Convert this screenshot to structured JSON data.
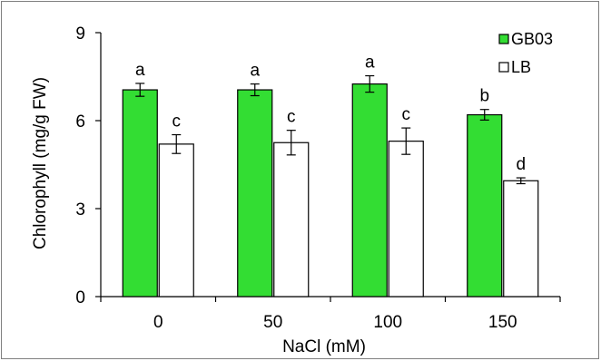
{
  "chart_data": {
    "type": "bar",
    "title": "",
    "xlabel": "NaCl (mM)",
    "ylabel": "Chlorophyll (mg/g FW)",
    "categories": [
      "0",
      "50",
      "100",
      "150"
    ],
    "ylim": [
      0,
      9
    ],
    "yticks": [
      "0",
      "3",
      "6",
      "9"
    ],
    "grid": false,
    "legend_position": "top-right",
    "series": [
      {
        "name": "GB03",
        "color": "#33dd33",
        "values": [
          7.05,
          7.05,
          7.25,
          6.2
        ],
        "errors": [
          0.22,
          0.2,
          0.28,
          0.18
        ],
        "labels": [
          "a",
          "a",
          "a",
          "b"
        ]
      },
      {
        "name": "LB",
        "color": "#ffffff",
        "values": [
          5.2,
          5.25,
          5.3,
          3.95
        ],
        "errors": [
          0.32,
          0.42,
          0.45,
          0.1
        ],
        "labels": [
          "c",
          "c",
          "c",
          "d"
        ]
      }
    ]
  }
}
